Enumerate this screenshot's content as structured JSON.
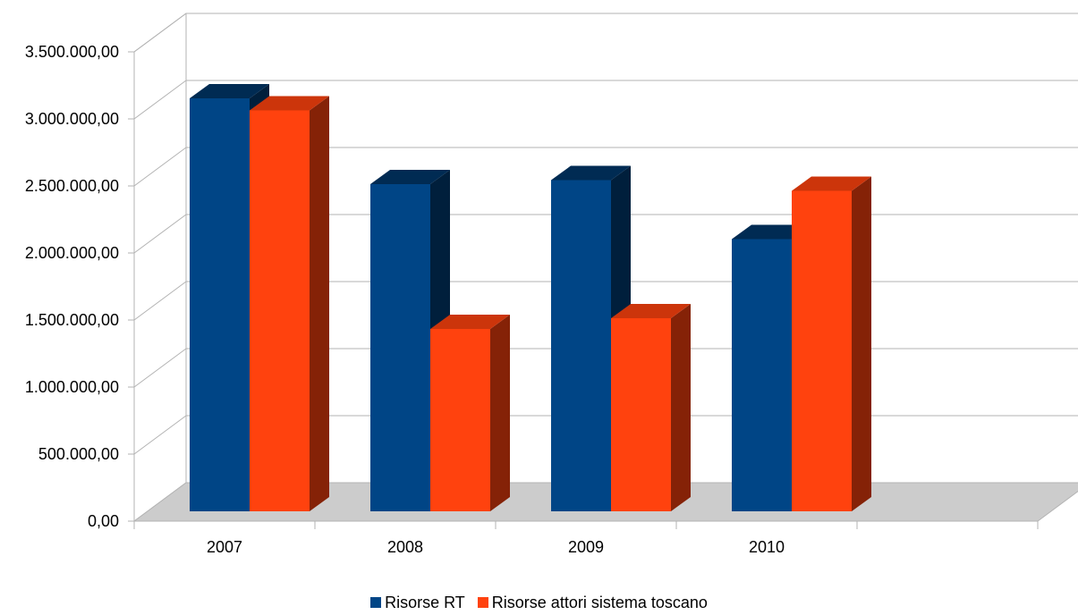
{
  "chart_data": {
    "type": "bar",
    "title": "",
    "xlabel": "",
    "ylabel": "",
    "categories": [
      "2007",
      "2008",
      "2009",
      "2010"
    ],
    "series": [
      {
        "name": "Risorse RT",
        "values": [
          3080000,
          2440000,
          2470000,
          2030000
        ],
        "color": "#004586"
      },
      {
        "name": "Risorse attori sistema toscano",
        "values": [
          2990000,
          1360000,
          1440000,
          2390000
        ],
        "color": "#ff420e"
      }
    ],
    "ylim": [
      0,
      3500000
    ],
    "y_ticks": [
      "0,00",
      "500.000,00",
      "1.000.000,00",
      "1.500.000,00",
      "2.000.000,00",
      "2.500.000,00",
      "3.000.000,00",
      "3.500.000,00"
    ],
    "style": "3d",
    "grid": true,
    "legend_position": "bottom"
  }
}
